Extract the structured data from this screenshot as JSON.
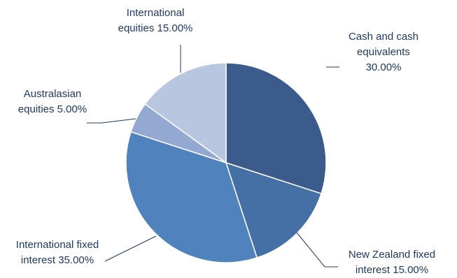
{
  "chart_data": {
    "type": "pie",
    "categories": [
      "Cash and cash equivalents",
      "New Zealand fixed interest",
      "International fixed interest",
      "Australasian equities",
      "International equities"
    ],
    "values": [
      30.0,
      15.0,
      35.0,
      5.0,
      15.0
    ],
    "colors": [
      "#3a5b8c",
      "#4570a6",
      "#5082be",
      "#93a9d2",
      "#b8c6df"
    ],
    "data_labels": [
      [
        "Cash and cash",
        "equivalents",
        "30.00%"
      ],
      [
        "New Zealand fixed",
        "interest 15.00%"
      ],
      [
        "International fixed",
        "interest 35.00%"
      ],
      [
        "Australasian",
        "equities 5.00%"
      ],
      [
        "International",
        "equities 15.00%"
      ]
    ],
    "start_angle": "12 o'clock",
    "direction": "clockwise",
    "legend": "none"
  }
}
